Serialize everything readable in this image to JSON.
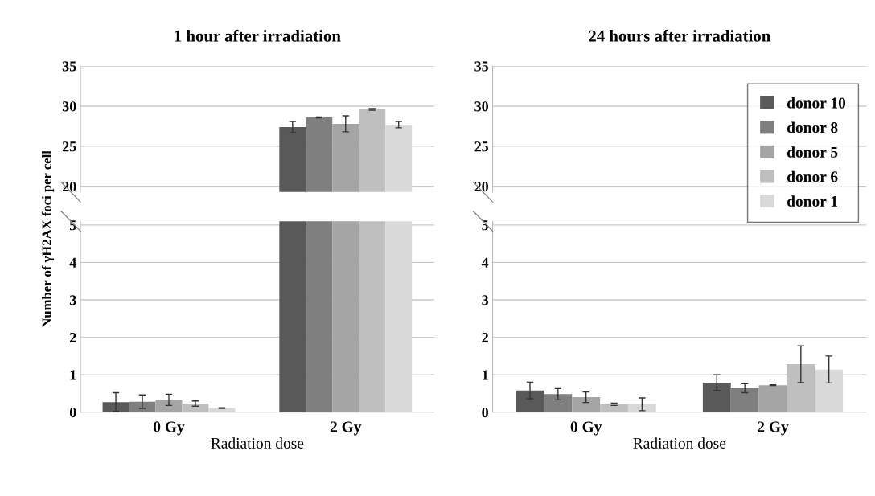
{
  "chart_data": [
    {
      "type": "bar",
      "title": "1 hour after irradiation",
      "categories": [
        null,
        null
      ],
      "ylim": [
        19.3,
        35
      ],
      "yticks": [
        20,
        25,
        30,
        35
      ],
      "grid": "y",
      "tick_labels": "y",
      "legend": false,
      "series": [
        {
          "color": "#595959",
          "values": [
            null,
            27.4
          ],
          "errors": [
            null,
            0.7
          ]
        },
        {
          "color": "#7f7f7f",
          "values": [
            null,
            28.6
          ],
          "errors": [
            null,
            0.05
          ]
        },
        {
          "color": "#a5a5a5",
          "values": [
            null,
            27.8
          ],
          "errors": [
            null,
            1.0
          ]
        },
        {
          "color": "#bfbfbf",
          "values": [
            null,
            29.6
          ],
          "errors": [
            null,
            0.1
          ]
        },
        {
          "color": "#d9d9d9",
          "values": [
            null,
            27.7
          ],
          "errors": [
            null,
            0.4
          ]
        }
      ]
    },
    {
      "type": "bar",
      "xlabel": "Radiation dose",
      "ylabel": "Number of γH2AX foci per cell",
      "categories": [
        "0 Gy",
        "2 Gy"
      ],
      "ylim": [
        0,
        5.1
      ],
      "yticks": [
        0,
        1,
        2,
        3,
        4,
        5
      ],
      "grid": "y",
      "series": [
        {
          "color": "#595959",
          "values": [
            0.27,
            null
          ],
          "errors": [
            0.25,
            null
          ]
        },
        {
          "color": "#7f7f7f",
          "values": [
            0.28,
            null
          ],
          "errors": [
            0.18,
            null
          ]
        },
        {
          "color": "#a5a5a5",
          "values": [
            0.33,
            null
          ],
          "errors": [
            0.15,
            null
          ]
        },
        {
          "color": "#bfbfbf",
          "values": [
            0.23,
            null
          ],
          "errors": [
            0.07,
            null
          ]
        },
        {
          "color": "#d9d9d9",
          "values": [
            0.11,
            null
          ],
          "errors": [
            0.01,
            null
          ]
        }
      ]
    },
    {
      "type": "bar",
      "categories": [
        null,
        null
      ],
      "ylim": [
        19.3,
        35
      ],
      "yticks": [
        20,
        25,
        30,
        35
      ],
      "grid": "y",
      "tick_labels": "y",
      "legend": false
    },
    {
      "type": "bar",
      "title": "24 hours after irradiation",
      "xlabel": "Radiation dose",
      "categories": [
        "0 Gy",
        "2 Gy"
      ],
      "ylim": [
        0,
        5.1
      ],
      "yticks": [
        0,
        1,
        2,
        3,
        4,
        5
      ],
      "grid": "y",
      "legend": "top right",
      "series": [
        {
          "name": "donor 10",
          "color": "#595959",
          "values": [
            0.58,
            0.79
          ],
          "errors": [
            0.22,
            0.21
          ]
        },
        {
          "name": "donor 8",
          "color": "#7f7f7f",
          "values": [
            0.48,
            0.64
          ],
          "errors": [
            0.15,
            0.12
          ]
        },
        {
          "name": "donor 5",
          "color": "#a5a5a5",
          "values": [
            0.4,
            0.72
          ],
          "errors": [
            0.14,
            0.01
          ]
        },
        {
          "name": "donor 6",
          "color": "#bfbfbf",
          "values": [
            0.21,
            1.28
          ],
          "errors": [
            0.03,
            0.49
          ]
        },
        {
          "name": "donor 1",
          "color": "#d9d9d9",
          "values": [
            0.21,
            1.14
          ],
          "errors": [
            0.17,
            0.36
          ]
        }
      ]
    }
  ]
}
